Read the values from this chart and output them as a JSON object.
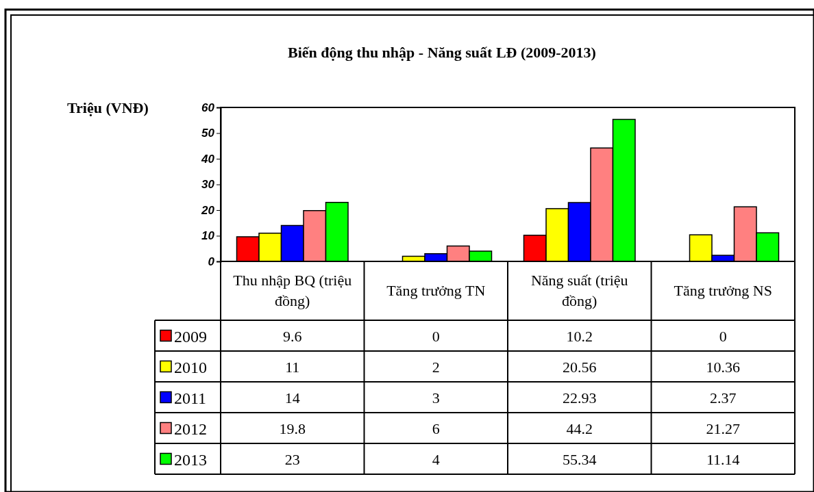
{
  "chart_data": {
    "type": "bar",
    "title": "Biến động thu nhập - Năng suất LĐ (2009-2013)",
    "ylabel": "Triệu (VNĐ)",
    "categories": [
      "Thu nhập BQ (triệu đồng)",
      "Tăng trưởng TN",
      "Năng suất (triệu đồng)",
      "Tăng trưởng NS"
    ],
    "series": [
      {
        "name": "2009",
        "color": "#ff0000",
        "values": [
          9.6,
          0,
          10.2,
          0
        ]
      },
      {
        "name": "2010",
        "color": "#ffff00",
        "values": [
          11,
          2,
          20.56,
          10.36
        ]
      },
      {
        "name": "2011",
        "color": "#0000ff",
        "values": [
          14,
          3,
          22.93,
          2.37
        ]
      },
      {
        "name": "2012",
        "color": "#ff8080",
        "values": [
          19.8,
          6,
          44.2,
          21.27
        ]
      },
      {
        "name": "2013",
        "color": "#00ff00",
        "values": [
          23,
          4,
          55.34,
          11.14
        ]
      }
    ],
    "ylim": [
      0,
      60
    ],
    "yticks": [
      0,
      10,
      20,
      30,
      40,
      50,
      60
    ],
    "grid": false,
    "legend": "bottom",
    "data_labels": true
  }
}
